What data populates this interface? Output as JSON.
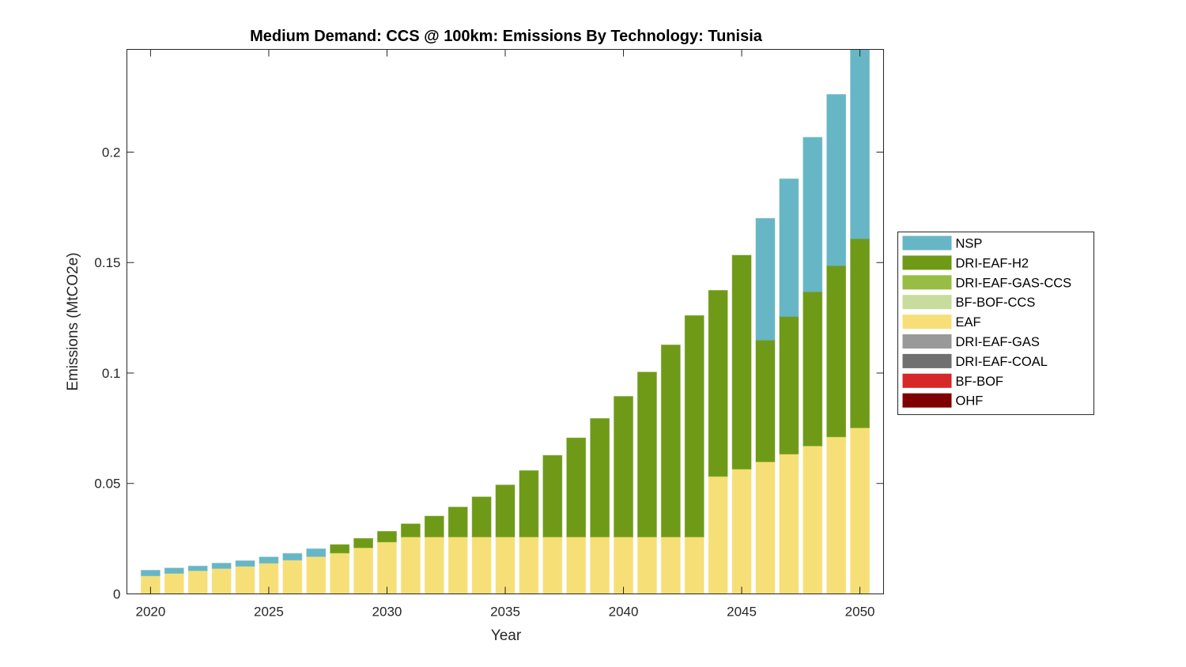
{
  "chart_data": {
    "type": "bar",
    "stacked": true,
    "title": "Medium Demand: CCS @ 100km: Emissions By Technology: Tunisia",
    "xlabel": "Year",
    "ylabel": "Emissions (MtCO2e)",
    "xlim": [
      2019,
      2051
    ],
    "ylim": [
      0,
      0.2465
    ],
    "xticks": [
      2020,
      2025,
      2030,
      2035,
      2040,
      2045,
      2050
    ],
    "xtick_labels": [
      "2020",
      "2025",
      "2030",
      "2035",
      "2040",
      "2045",
      "2050"
    ],
    "yticks": [
      0,
      0.05,
      0.1,
      0.15,
      0.2
    ],
    "ytick_labels": [
      "0",
      "0.05",
      "0.1",
      "0.15",
      "0.2"
    ],
    "grid": false,
    "legend_position": "right",
    "x": [
      2020,
      2021,
      2022,
      2023,
      2024,
      2025,
      2026,
      2027,
      2028,
      2029,
      2030,
      2031,
      2032,
      2033,
      2034,
      2035,
      2036,
      2037,
      2038,
      2039,
      2040,
      2041,
      2042,
      2043,
      2044,
      2045,
      2046,
      2047,
      2048,
      2049,
      2050
    ],
    "series": [
      {
        "name": "OHF",
        "color": "#7f0000",
        "values": [
          0,
          0,
          0,
          0,
          0,
          0,
          0,
          0,
          0,
          0,
          0,
          0,
          0,
          0,
          0,
          0,
          0,
          0,
          0,
          0,
          0,
          0,
          0,
          0,
          0,
          0,
          0,
          0,
          0,
          0,
          0
        ]
      },
      {
        "name": "BF-BOF",
        "color": "#d62828",
        "values": [
          0,
          0,
          0,
          0,
          0,
          0,
          0,
          0,
          0,
          0,
          0,
          0,
          0,
          0,
          0,
          0,
          0,
          0,
          0,
          0,
          0,
          0,
          0,
          0,
          0,
          0,
          0,
          0,
          0,
          0,
          0
        ]
      },
      {
        "name": "DRI-EAF-COAL",
        "color": "#707070",
        "values": [
          0,
          0,
          0,
          0,
          0,
          0,
          0,
          0,
          0,
          0,
          0,
          0,
          0,
          0,
          0,
          0,
          0,
          0,
          0,
          0,
          0,
          0,
          0,
          0,
          0,
          0,
          0,
          0,
          0,
          0,
          0
        ]
      },
      {
        "name": "DRI-EAF-GAS",
        "color": "#999999",
        "values": [
          0,
          0,
          0,
          0,
          0,
          0,
          0,
          0,
          0,
          0,
          0,
          0,
          0,
          0,
          0,
          0,
          0,
          0,
          0,
          0,
          0,
          0,
          0,
          0,
          0,
          0,
          0,
          0,
          0,
          0,
          0
        ]
      },
      {
        "name": "EAF",
        "color": "#f7df78",
        "values": [
          0.0082,
          0.0093,
          0.0105,
          0.0115,
          0.0125,
          0.0139,
          0.0153,
          0.0169,
          0.0185,
          0.0209,
          0.0235,
          0.0258,
          0.0258,
          0.0258,
          0.0258,
          0.0258,
          0.0258,
          0.0258,
          0.0258,
          0.0258,
          0.0258,
          0.0258,
          0.0258,
          0.0258,
          0.0532,
          0.0565,
          0.0598,
          0.0633,
          0.067,
          0.0711,
          0.0752
        ]
      },
      {
        "name": "BF-BOF-CCS",
        "color": "#c8dc9c",
        "values": [
          0,
          0,
          0,
          0,
          0,
          0,
          0,
          0,
          0,
          0,
          0,
          0,
          0,
          0,
          0,
          0,
          0,
          0,
          0,
          0,
          0,
          0,
          0,
          0,
          0,
          0,
          0,
          0,
          0,
          0,
          0
        ]
      },
      {
        "name": "DRI-EAF-GAS-CCS",
        "color": "#98bd45",
        "values": [
          0,
          0,
          0,
          0,
          0,
          0,
          0,
          0,
          0,
          0,
          0,
          0,
          0,
          0,
          0,
          0,
          0,
          0,
          0,
          0,
          0,
          0,
          0,
          0,
          0,
          0,
          0,
          0,
          0,
          0,
          0
        ]
      },
      {
        "name": "DRI-EAF-H2",
        "color": "#6f9a18",
        "values": [
          0,
          0,
          0,
          0,
          0,
          0,
          0,
          0,
          0.0038,
          0.0042,
          0.0048,
          0.0059,
          0.0094,
          0.0135,
          0.0181,
          0.0235,
          0.03,
          0.0369,
          0.0448,
          0.0536,
          0.0636,
          0.0746,
          0.0869,
          0.1002,
          0.0842,
          0.0968,
          0.0551,
          0.0623,
          0.0698,
          0.0775,
          0.0856
        ]
      },
      {
        "name": "NSP",
        "color": "#67b6c6",
        "values": [
          0.0025,
          0.0024,
          0.0021,
          0.0024,
          0.0025,
          0.0028,
          0.003,
          0.0035,
          0,
          0,
          0,
          0,
          0,
          0,
          0,
          0,
          0,
          0,
          0,
          0,
          0,
          0,
          0,
          0,
          0,
          0,
          0.0551,
          0.0623,
          0.0699,
          0.0775,
          0.086
        ]
      }
    ],
    "legend": [
      "NSP",
      "DRI-EAF-H2",
      "DRI-EAF-GAS-CCS",
      "BF-BOF-CCS",
      "EAF",
      "DRI-EAF-GAS",
      "DRI-EAF-COAL",
      "BF-BOF",
      "OHF"
    ]
  }
}
